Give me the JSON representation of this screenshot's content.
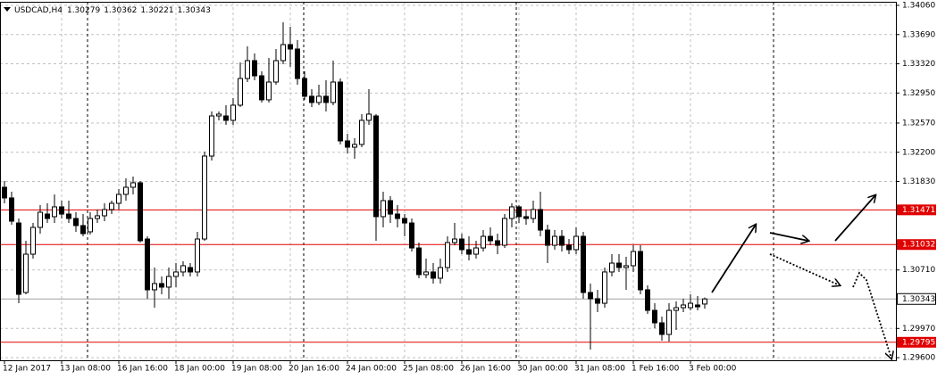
{
  "chart_data": {
    "type": "candlestick",
    "title": "USDCAD,H4",
    "x": [
      "12 Jan 2017",
      null,
      null,
      null,
      null,
      null,
      null,
      null,
      "13 Jan 08:00",
      null,
      null,
      null,
      null,
      null,
      null,
      null,
      "16 Jan 16:00",
      null,
      null,
      null,
      null,
      null,
      null,
      null,
      "18 Jan 00:00",
      null,
      null,
      null,
      null,
      null,
      null,
      null,
      "19 Jan 08:00",
      null,
      null,
      null,
      null,
      null,
      null,
      null,
      "20 Jan 16:00",
      null,
      null,
      null,
      null,
      null,
      null,
      null,
      "24 Jan 00:00",
      null,
      null,
      null,
      null,
      null,
      null,
      null,
      "25 Jan 08:00",
      null,
      null,
      null,
      null,
      null,
      null,
      null,
      "26 Jan 16:00",
      null,
      null,
      null,
      null,
      null,
      null,
      null,
      "30 Jan 00:00",
      null,
      null,
      null,
      null,
      null,
      null,
      null,
      "31 Jan 08:00",
      null,
      null,
      null,
      null,
      null,
      null,
      null,
      "1 Feb 16:00",
      null,
      null,
      null,
      null,
      null,
      null,
      null,
      "3 Feb 00:00",
      null,
      null
    ],
    "open": [
      1.31757,
      1.31622,
      1.31305,
      1.30425,
      1.3091,
      1.31249,
      1.31418,
      1.31385,
      1.31509,
      1.31418,
      1.31362,
      1.31272,
      1.31193,
      1.31362,
      1.31396,
      1.31475,
      1.31554,
      1.31667,
      1.31757,
      1.31814,
      1.31102,
      1.30459,
      1.30538,
      1.30493,
      1.30628,
      1.30685,
      1.30741,
      1.30685,
      1.31102,
      1.32152,
      1.3266,
      1.3266,
      1.32604,
      1.32796,
      1.33134,
      1.3336,
      1.33168,
      1.32864,
      1.33089,
      1.3336,
      1.33563,
      1.33507,
      1.33134,
      1.32909,
      1.3283,
      1.32909,
      1.3283,
      1.33089,
      1.32344,
      1.32265,
      1.32299,
      1.32604,
      1.3266,
      1.31385,
      1.31588,
      1.31418,
      1.31362,
      1.31305,
      1.30989,
      1.30651,
      1.30685,
      1.30606,
      1.30741,
      1.31057,
      1.31102,
      1.30967,
      1.3091,
      1.30989,
      1.31136,
      1.3108,
      1.31023,
      1.31362,
      1.31509,
      1.31385,
      1.31362,
      1.31475,
      1.31215,
      1.31023,
      1.31136,
      1.31023,
      1.30967,
      1.31136,
      1.30425,
      1.30346,
      1.30289,
      1.30685,
      1.30797,
      1.30741,
      1.30764,
      1.30944,
      1.30459,
      1.30199,
      1.30041,
      1.29894,
      1.30199,
      1.30233,
      1.30233,
      1.30267,
      1.30279
    ],
    "high": [
      1.31836,
      1.31701,
      1.31362,
      1.3108,
      1.31305,
      1.31531,
      1.31554,
      1.31667,
      1.31588,
      1.31588,
      1.31441,
      1.31418,
      1.31441,
      1.31475,
      1.31554,
      1.31588,
      1.31735,
      1.3187,
      1.31893,
      1.31836,
      1.31136,
      1.30741,
      1.30628,
      1.30741,
      1.30797,
      1.3082,
      1.30797,
      1.31193,
      1.32209,
      1.32717,
      1.32717,
      1.32796,
      1.32886,
      1.33338,
      1.33541,
      1.33451,
      1.33225,
      1.33394,
      1.33507,
      1.33846,
      1.33789,
      1.3362,
      1.33225,
      1.32999,
      1.33055,
      1.33112,
      1.3336,
      1.33134,
      1.32434,
      1.32378,
      1.32683,
      1.32999,
      1.32683,
      1.31701,
      1.31644,
      1.31531,
      1.31418,
      1.31362,
      1.31057,
      1.30854,
      1.30797,
      1.30854,
      1.31136,
      1.31305,
      1.3117,
      1.31136,
      1.3108,
      1.31215,
      1.31249,
      1.3117,
      1.31418,
      1.31554,
      1.31531,
      1.31475,
      1.31588,
      1.31701,
      1.31283,
      1.31215,
      1.31215,
      1.31102,
      1.31249,
      1.31193,
      1.30538,
      1.30459,
      1.30741,
      1.3091,
      1.3091,
      1.30876,
      1.31023,
      1.31023,
      1.30515,
      1.30289,
      1.3012,
      1.30289,
      1.30312,
      1.30346,
      1.30402,
      1.3038,
      1.30362
    ],
    "low": [
      1.31554,
      1.31283,
      1.30289,
      1.30402,
      1.30854,
      1.3117,
      1.31305,
      1.31305,
      1.31362,
      1.31305,
      1.31193,
      1.31136,
      1.31159,
      1.31305,
      1.31328,
      1.31418,
      1.31475,
      1.31588,
      1.31667,
      1.31057,
      1.30346,
      1.30233,
      1.30402,
      1.30346,
      1.30493,
      1.30628,
      1.30628,
      1.30628,
      1.3108,
      1.32096,
      1.32604,
      1.32547,
      1.32547,
      1.32773,
      1.33089,
      1.33112,
      1.3283,
      1.3283,
      1.33055,
      1.33315,
      1.33281,
      1.33055,
      1.32864,
      1.32773,
      1.32796,
      1.32717,
      1.32796,
      1.32299,
      1.32186,
      1.32118,
      1.32265,
      1.32547,
      1.3108,
      1.31249,
      1.31305,
      1.31249,
      1.31136,
      1.30944,
      1.30606,
      1.30606,
      1.30538,
      1.30538,
      1.30685,
      1.31023,
      1.3091,
      1.30831,
      1.30854,
      1.30944,
      1.31023,
      1.3091,
      1.30989,
      1.31249,
      1.31305,
      1.31283,
      1.31305,
      1.31136,
      1.30797,
      1.30967,
      1.30944,
      1.3091,
      1.3091,
      1.30346,
      1.29702,
      1.30176,
      1.30233,
      1.30628,
      1.30685,
      1.30459,
      1.30685,
      1.30402,
      1.30154,
      1.29973,
      1.29815,
      1.29804,
      1.29951,
      1.30176,
      1.30199,
      1.30199,
      1.30221
    ],
    "close": [
      1.31622,
      1.31328,
      1.30402,
      1.3091,
      1.31249,
      1.31441,
      1.31362,
      1.31509,
      1.31418,
      1.31362,
      1.31272,
      1.3117,
      1.31362,
      1.31396,
      1.31475,
      1.31554,
      1.31667,
      1.31757,
      1.31814,
      1.3108,
      1.30459,
      1.30538,
      1.30493,
      1.30628,
      1.30685,
      1.30764,
      1.30685,
      1.31102,
      1.32152,
      1.3266,
      1.32683,
      1.32604,
      1.32796,
      1.33134,
      1.3336,
      1.33168,
      1.32864,
      1.33089,
      1.3336,
      1.33563,
      1.33507,
      1.33134,
      1.32909,
      1.3283,
      1.32909,
      1.3283,
      1.33089,
      1.32344,
      1.32265,
      1.32299,
      1.32604,
      1.32683,
      1.31385,
      1.31588,
      1.31418,
      1.31362,
      1.31305,
      1.30989,
      1.30651,
      1.30685,
      1.30606,
      1.30741,
      1.31057,
      1.31102,
      1.30967,
      1.3091,
      1.30989,
      1.31136,
      1.3108,
      1.31023,
      1.31362,
      1.31509,
      1.31385,
      1.31362,
      1.31475,
      1.31215,
      1.31023,
      1.31136,
      1.31023,
      1.30967,
      1.31136,
      1.30425,
      1.30346,
      1.30289,
      1.30685,
      1.30797,
      1.30741,
      1.30764,
      1.30944,
      1.30459,
      1.30199,
      1.30041,
      1.29894,
      1.30199,
      1.30233,
      1.30267,
      1.30289,
      1.30244,
      1.30343
    ],
    "levels": [
      1.31471,
      1.31032,
      1.29795
    ],
    "ylim": [
      1.29567,
      1.34105
    ],
    "yticks": [
      {
        "value": 1.3406,
        "label": "1.34060"
      },
      {
        "value": 1.3369,
        "label": "1.33690"
      },
      {
        "value": 1.3332,
        "label": "1.33320"
      },
      {
        "value": 1.3295,
        "label": "1.32950"
      },
      {
        "value": 1.3257,
        "label": "1.32570"
      },
      {
        "value": 1.322,
        "label": "1.32200"
      },
      {
        "value": 1.3183,
        "label": "1.31830"
      },
      {
        "value": 1.3071,
        "label": "1.30710"
      },
      {
        "value": 1.2997,
        "label": "1.29970"
      },
      {
        "value": 1.296,
        "label": "1.29600"
      }
    ],
    "grid": true,
    "bull_color": "#ffffff",
    "bear_color": "#000000",
    "level_color": "#e00000"
  }
}
